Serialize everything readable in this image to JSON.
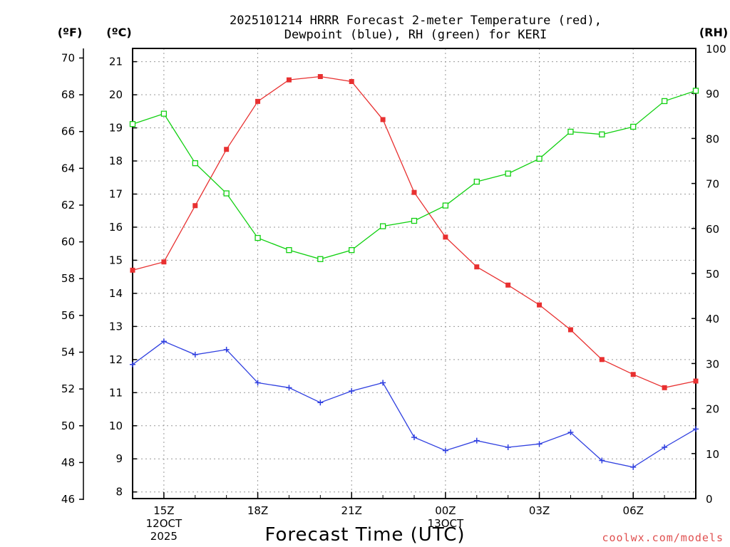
{
  "chart_data": {
    "type": "line",
    "title_line1": "2025101214 HRRR Forecast 2-meter Temperature (red),",
    "title_line2": "Dewpoint (blue), RH (green) for KERI",
    "xlabel": "Forecast Time (UTC)",
    "credit": "coolwx.com/models",
    "units": {
      "fahrenheit": "(ºF)",
      "celsius": "(ºC)",
      "rh": "(RH)"
    },
    "x_hours": [
      14,
      15,
      16,
      17,
      18,
      19,
      20,
      21,
      22,
      23,
      24,
      25,
      26,
      27,
      28,
      29,
      30,
      31,
      32
    ],
    "x_ticks": [
      {
        "hour": 15,
        "label": "15Z",
        "sub1": "12OCT",
        "sub2": "2025"
      },
      {
        "hour": 18,
        "label": "18Z",
        "sub1": "",
        "sub2": ""
      },
      {
        "hour": 21,
        "label": "21Z",
        "sub1": "",
        "sub2": ""
      },
      {
        "hour": 24,
        "label": "00Z",
        "sub1": "13OCT",
        "sub2": ""
      },
      {
        "hour": 27,
        "label": "03Z",
        "sub1": "",
        "sub2": ""
      },
      {
        "hour": 30,
        "label": "06Z",
        "sub1": "",
        "sub2": ""
      }
    ],
    "celsius_axis": {
      "range": [
        7.8,
        21.4
      ],
      "ticks": [
        8,
        9,
        10,
        11,
        12,
        13,
        14,
        15,
        16,
        17,
        18,
        19,
        20,
        21
      ]
    },
    "fahrenheit_ticks": [
      46,
      48,
      50,
      52,
      54,
      56,
      58,
      60,
      62,
      64,
      66,
      68,
      70
    ],
    "rh_axis": {
      "range": [
        0,
        100
      ],
      "ticks": [
        0,
        10,
        20,
        30,
        40,
        50,
        60,
        70,
        80,
        90,
        100
      ]
    },
    "series": [
      {
        "name": "Temperature",
        "axis": "celsius",
        "color": "#e83030",
        "marker": "filled-square",
        "values": [
          14.7,
          14.95,
          16.65,
          18.35,
          19.8,
          20.45,
          20.55,
          20.4,
          19.25,
          17.05,
          15.7,
          14.8,
          14.25,
          13.65,
          12.9,
          12.0,
          11.55,
          11.15,
          11.35
        ]
      },
      {
        "name": "Dewpoint",
        "axis": "celsius",
        "color": "#3040e0",
        "marker": "plus",
        "values": [
          11.85,
          12.55,
          12.15,
          12.3,
          11.3,
          11.15,
          10.7,
          11.05,
          11.3,
          9.65,
          9.25,
          9.55,
          9.35,
          9.45,
          9.8,
          8.95,
          8.75,
          9.35,
          9.9
        ]
      },
      {
        "name": "RH",
        "axis": "rh",
        "color": "#10d010",
        "marker": "open-square",
        "values": [
          83.2,
          85.5,
          74.5,
          67.8,
          57.9,
          55.2,
          53.2,
          55.2,
          60.5,
          61.7,
          65.1,
          70.4,
          72.2,
          75.5,
          81.5,
          80.9,
          82.6,
          88.3,
          90.6
        ]
      }
    ]
  }
}
